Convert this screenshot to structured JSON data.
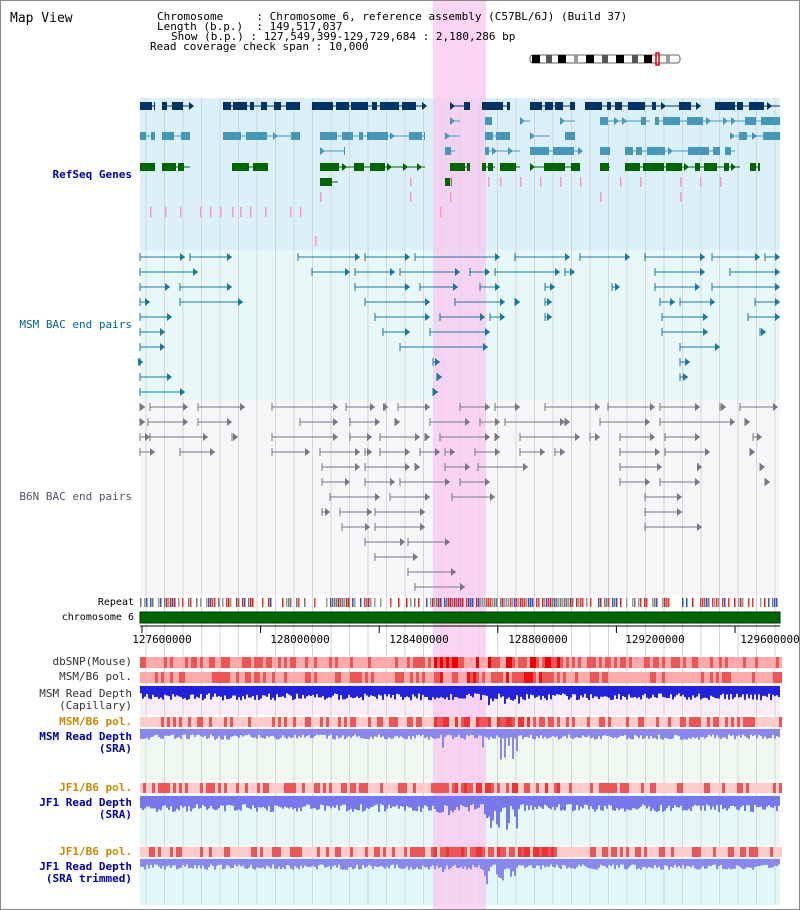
{
  "view_title": "Map View",
  "header": {
    "chromosome_key": "Chromosome",
    "chromosome_value": "Chromosome 6, reference assembly (C57BL/6J) (Build 37)",
    "length_key": "Length (b.p.)",
    "length_value": "149,517,037",
    "show_key": "Show (b.p.)",
    "show_value": "127,549,399-129,729,684 : 2,180,286 bp",
    "coverage_key": "Read coverage check span",
    "coverage_value": "10,000"
  },
  "tracks": {
    "refseq": "RefSeq Genes",
    "msm_bac": "MSM BAC end pairs",
    "b6n_bac": "B6N BAC end pairs",
    "repeat": "Repeat",
    "chromosome": "chromosome 6",
    "dbsnp": "dbSNP(Mouse)",
    "msm_b6_pol": "MSM/B6 pol.",
    "msm_depth_cap_1": "MSM Read Depth",
    "msm_depth_cap_2": "(Capillary)",
    "msm_b6_pol_sra": "MSM/B6 pol.",
    "msm_depth_sra_1": "MSM Read Depth",
    "msm_depth_sra_2": "(SRA)",
    "jf1_b6_pol": "JF1/B6 pol.",
    "jf1_depth_1": "JF1 Read Depth",
    "jf1_depth_2": "(SRA)",
    "jf1_b6_pol_trim": "JF1/B6 pol.",
    "jf1_trim_1": "JF1 Read Depth",
    "jf1_trim_2": "(SRA trimmed)"
  },
  "axis": {
    "ticks": [
      "127600000",
      "128000000",
      "128400000",
      "128800000",
      "129200000",
      "129600000"
    ]
  },
  "colors": {
    "label_blue": "#0000aa",
    "label_teal": "#006688",
    "label_orange": "#cc8800",
    "highlight": "#f8c8f0",
    "chromosome_bar": "#006600"
  }
}
